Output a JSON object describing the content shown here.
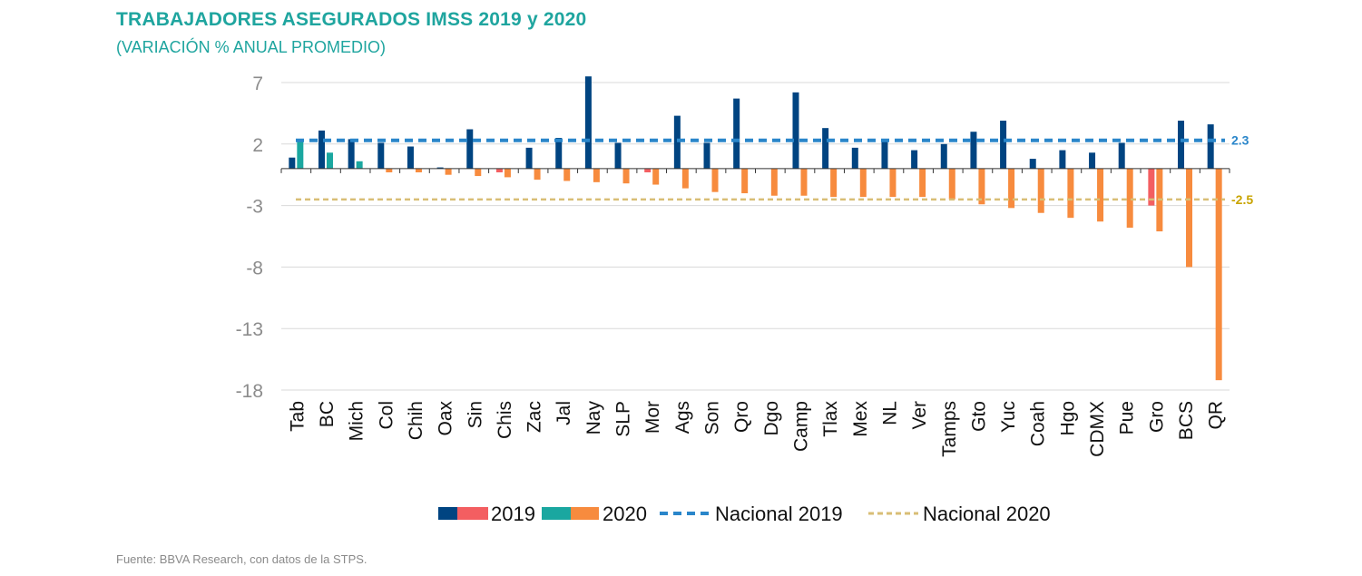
{
  "title": "TRABAJADORES ASEGURADOS IMSS 2019 y 2020",
  "subtitle": "(VARIACIÓN % ANUAL PROMEDIO)",
  "source": "Fuente: BBVA Research, con datos de la STPS.",
  "colors": {
    "pos2019": "#004481",
    "neg2019": "#f35e61",
    "pos2020": "#1aa7a0",
    "neg2020": "#f78b3e",
    "nacional2019": "#2a86ca",
    "nacional2020": "#d8be75",
    "ann2019": "#2a86ca",
    "ann2020": "#c9a400"
  },
  "chart_data": {
    "type": "bar",
    "categories": [
      "Tab",
      "BC",
      "Mich",
      "Col",
      "Chih",
      "Oax",
      "Sin",
      "Chis",
      "Zac",
      "Jal",
      "Nay",
      "SLP",
      "Mor",
      "Ags",
      "Son",
      "Qro",
      "Dgo",
      "Camp",
      "Tlax",
      "Mex",
      "NL",
      "Ver",
      "Tamps",
      "Gto",
      "Yuc",
      "Coah",
      "Hgo",
      "CDMX",
      "Pue",
      "Gro",
      "BCS",
      "QR"
    ],
    "series": [
      {
        "name": "2019",
        "values": [
          0.9,
          3.1,
          2.4,
          2.1,
          1.8,
          0.1,
          3.2,
          -0.3,
          1.7,
          2.5,
          7.5,
          2.1,
          -0.3,
          4.3,
          2.1,
          5.7,
          0.0,
          6.2,
          3.3,
          1.7,
          2.3,
          1.5,
          2.0,
          3.0,
          3.9,
          0.8,
          1.5,
          1.3,
          2.1,
          -3.0,
          3.9,
          3.6
        ]
      },
      {
        "name": "2020",
        "values": [
          2.4,
          1.3,
          0.6,
          -0.3,
          -0.3,
          -0.5,
          -0.6,
          -0.7,
          -0.9,
          -1.0,
          -1.1,
          -1.2,
          -1.3,
          -1.6,
          -1.9,
          -2.0,
          -2.2,
          -2.2,
          -2.3,
          -2.3,
          -2.3,
          -2.3,
          -2.5,
          -2.9,
          -3.2,
          -3.6,
          -4.0,
          -4.3,
          -4.8,
          -5.1,
          -8.0,
          -17.2
        ]
      }
    ],
    "reference_lines": [
      {
        "name": "Nacional 2019",
        "value": 2.3,
        "label": "2.3",
        "style": "dashed"
      },
      {
        "name": "Nacional 2020",
        "value": -2.5,
        "label": "-2.5",
        "style": "dashed"
      }
    ],
    "y_ticks": [
      "7",
      "2",
      "-3",
      "-8",
      "-13",
      "-18"
    ],
    "ylim": [
      -18,
      7
    ],
    "grid": true,
    "legend": {
      "placement": "bottom",
      "entries": [
        "2019",
        "2020",
        "Nacional 2019",
        "Nacional 2020"
      ]
    }
  }
}
